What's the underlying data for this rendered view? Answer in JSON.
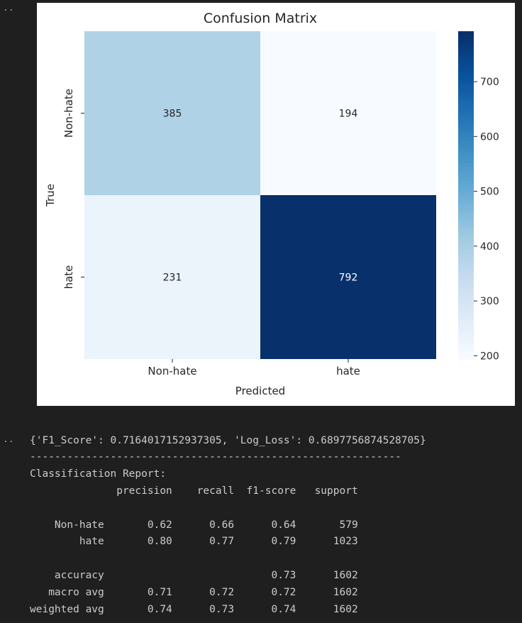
{
  "cells": {
    "prompt_1": "..",
    "prompt_2": ".."
  },
  "chart_data": {
    "type": "heatmap",
    "title": "Confusion Matrix",
    "xlabel": "Predicted",
    "ylabel": "True",
    "x_categories": [
      "Non-hate",
      "hate"
    ],
    "y_categories": [
      "Non-hate",
      "hate"
    ],
    "values": [
      [
        385,
        194
      ],
      [
        231,
        792
      ]
    ],
    "colorbar": {
      "cmap": "Blues",
      "range": [
        194,
        792
      ],
      "ticks": [
        200,
        300,
        400,
        500,
        600,
        700
      ]
    },
    "grid": false
  },
  "output": {
    "metrics_line": "{'F1_Score': 0.7164017152937305, 'Log_Loss': 0.6897756874528705}",
    "separator": "------------------------------------------------------------",
    "report_title": "Classification Report:",
    "report_lines": [
      "              precision    recall  f1-score   support",
      "",
      "    Non-hate       0.62      0.66      0.64       579",
      "        hate       0.80      0.77      0.79      1023",
      "",
      "    accuracy                           0.73      1602",
      "   macro avg       0.71      0.72      0.72      1602",
      "weighted avg       0.74      0.73      0.74      1602"
    ]
  }
}
